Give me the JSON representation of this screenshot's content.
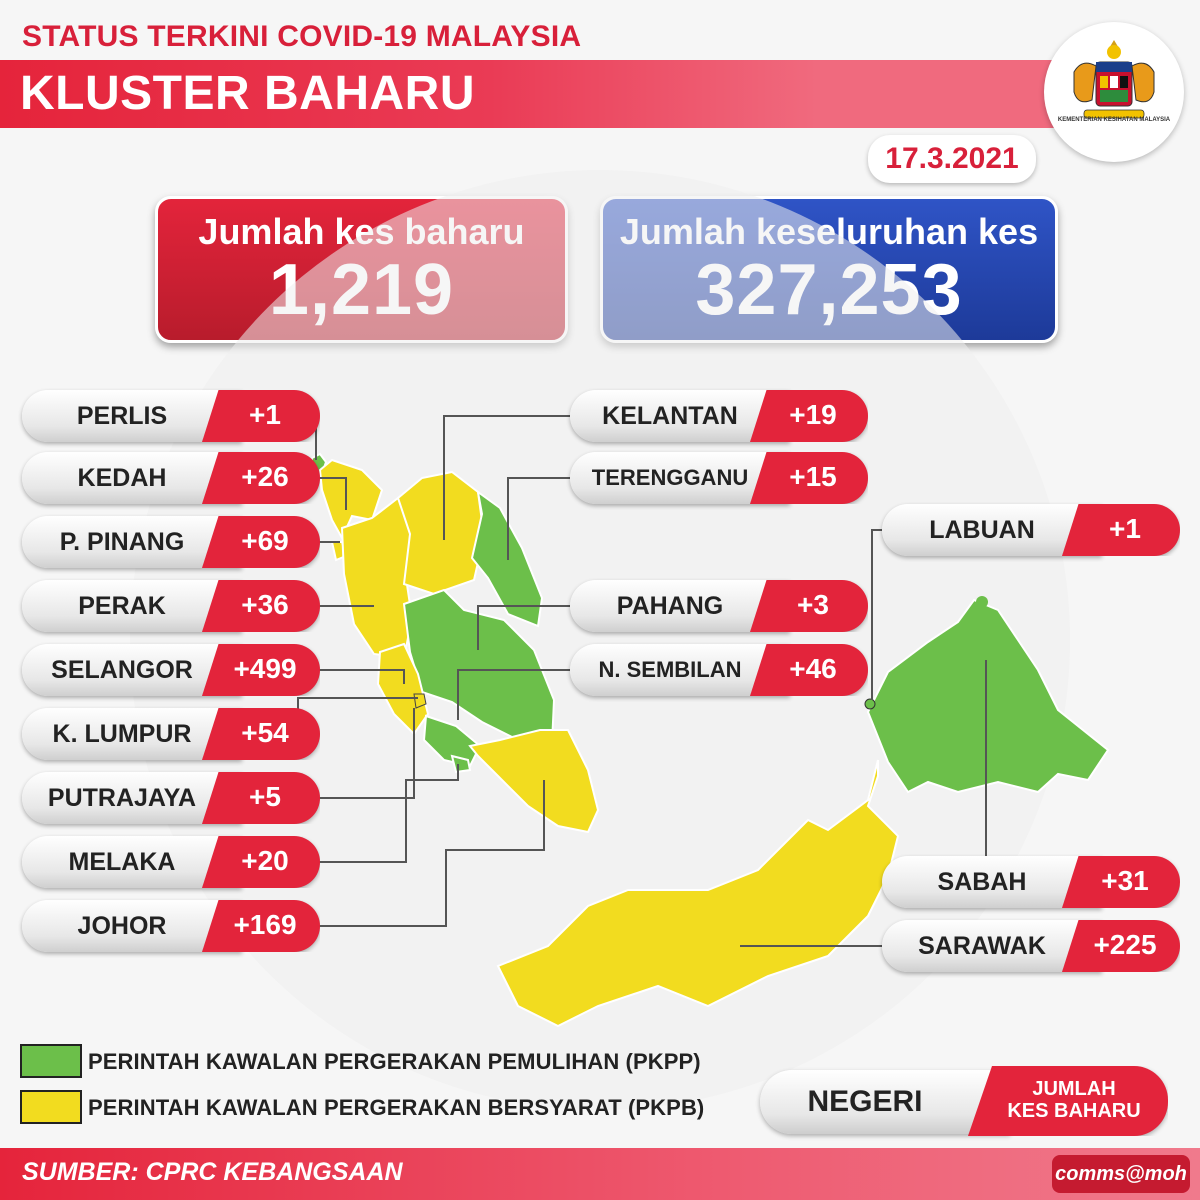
{
  "header": {
    "subtitle": "STATUS TERKINI COVID-19 MALAYSIA",
    "title": "KLUSTER BAHARU",
    "logo_caption": "KEMENTERIAN KESIHATAN MALAYSIA",
    "date": "17.3.2021"
  },
  "totals": {
    "new_label": "Jumlah kes baharu",
    "new_value": "1,219",
    "cumulative_label": "Jumlah keseluruhan kes",
    "cumulative_value": "327,253"
  },
  "states_left": [
    {
      "name": "PERLIS",
      "cases": "+1"
    },
    {
      "name": "KEDAH",
      "cases": "+26"
    },
    {
      "name": "P. PINANG",
      "cases": "+69"
    },
    {
      "name": "PERAK",
      "cases": "+36"
    },
    {
      "name": "SELANGOR",
      "cases": "+499"
    },
    {
      "name": "K. LUMPUR",
      "cases": "+54"
    },
    {
      "name": "PUTRAJAYA",
      "cases": "+5"
    },
    {
      "name": "MELAKA",
      "cases": "+20"
    },
    {
      "name": "JOHOR",
      "cases": "+169"
    }
  ],
  "states_middle": [
    {
      "name": "KELANTAN",
      "cases": "+19"
    },
    {
      "name": "TERENGGANU",
      "cases": "+15"
    },
    {
      "name": "PAHANG",
      "cases": "+3"
    },
    {
      "name": "N. SEMBILAN",
      "cases": "+46"
    }
  ],
  "states_right": [
    {
      "name": "LABUAN",
      "cases": "+1"
    },
    {
      "name": "SABAH",
      "cases": "+31"
    },
    {
      "name": "SARAWAK",
      "cases": "+225"
    }
  ],
  "legend": {
    "pkpp": {
      "label": "PERINTAH KAWALAN PERGERAKAN PEMULIHAN (PKPP)",
      "color": "#6cbf4a"
    },
    "pkpb": {
      "label": "PERINTAH KAWALAN PERGERAKAN BERSYARAT (PKPB)",
      "color": "#f2dc1f"
    }
  },
  "key": {
    "name_label": "NEGERI",
    "count_label_line1": "JUMLAH",
    "count_label_line2": "KES BAHARU"
  },
  "footer": {
    "source": "SUMBER: CPRC KEBANGSAAN",
    "tag": "comms@moh"
  }
}
